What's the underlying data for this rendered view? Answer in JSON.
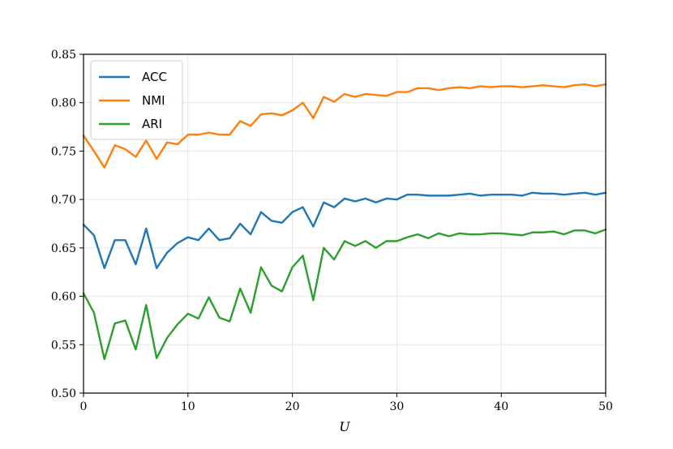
{
  "chart_data": {
    "type": "line",
    "title": "",
    "xlabel": "U",
    "ylabel": "",
    "xlim": [
      0,
      50
    ],
    "ylim": [
      0.5,
      0.85
    ],
    "xticks": [
      0,
      10,
      20,
      30,
      40,
      50
    ],
    "yticks": [
      "0.50",
      "0.55",
      "0.60",
      "0.65",
      "0.70",
      "0.75",
      "0.80",
      "0.85"
    ],
    "grid": true,
    "legend_position": "top-left",
    "x": [
      0,
      1,
      2,
      3,
      4,
      5,
      6,
      7,
      8,
      9,
      10,
      11,
      12,
      13,
      14,
      15,
      16,
      17,
      18,
      19,
      20,
      21,
      22,
      23,
      24,
      25,
      26,
      27,
      28,
      29,
      30,
      31,
      32,
      33,
      34,
      35,
      36,
      37,
      38,
      39,
      40,
      41,
      42,
      43,
      44,
      45,
      46,
      47,
      48,
      49,
      50
    ],
    "series": [
      {
        "name": "ACC",
        "color": "#1f77b4",
        "values": [
          0.674,
          0.663,
          0.629,
          0.658,
          0.658,
          0.633,
          0.67,
          0.629,
          0.645,
          0.655,
          0.661,
          0.658,
          0.67,
          0.658,
          0.66,
          0.675,
          0.664,
          0.687,
          0.678,
          0.676,
          0.687,
          0.692,
          0.672,
          0.697,
          0.692,
          0.701,
          0.698,
          0.701,
          0.697,
          0.701,
          0.7,
          0.705,
          0.705,
          0.704,
          0.704,
          0.704,
          0.705,
          0.706,
          0.704,
          0.705,
          0.705,
          0.705,
          0.704,
          0.707,
          0.706,
          0.706,
          0.705,
          0.706,
          0.707,
          0.705,
          0.707
        ]
      },
      {
        "name": "NMI",
        "color": "#ff7f0e",
        "values": [
          0.766,
          0.75,
          0.733,
          0.756,
          0.752,
          0.744,
          0.761,
          0.742,
          0.759,
          0.757,
          0.767,
          0.767,
          0.769,
          0.767,
          0.767,
          0.781,
          0.776,
          0.788,
          0.789,
          0.787,
          0.792,
          0.8,
          0.784,
          0.806,
          0.801,
          0.809,
          0.806,
          0.809,
          0.808,
          0.807,
          0.811,
          0.811,
          0.815,
          0.815,
          0.813,
          0.815,
          0.816,
          0.815,
          0.817,
          0.816,
          0.817,
          0.817,
          0.816,
          0.817,
          0.818,
          0.817,
          0.816,
          0.818,
          0.819,
          0.817,
          0.819
        ]
      },
      {
        "name": "ARI",
        "color": "#2ca02c",
        "values": [
          0.603,
          0.583,
          0.535,
          0.572,
          0.575,
          0.545,
          0.591,
          0.536,
          0.557,
          0.571,
          0.582,
          0.577,
          0.599,
          0.578,
          0.574,
          0.608,
          0.583,
          0.63,
          0.611,
          0.605,
          0.63,
          0.642,
          0.596,
          0.65,
          0.638,
          0.657,
          0.652,
          0.657,
          0.65,
          0.657,
          0.657,
          0.661,
          0.664,
          0.66,
          0.665,
          0.662,
          0.665,
          0.664,
          0.664,
          0.665,
          0.665,
          0.664,
          0.663,
          0.666,
          0.666,
          0.667,
          0.664,
          0.668,
          0.668,
          0.665,
          0.669
        ]
      }
    ]
  }
}
